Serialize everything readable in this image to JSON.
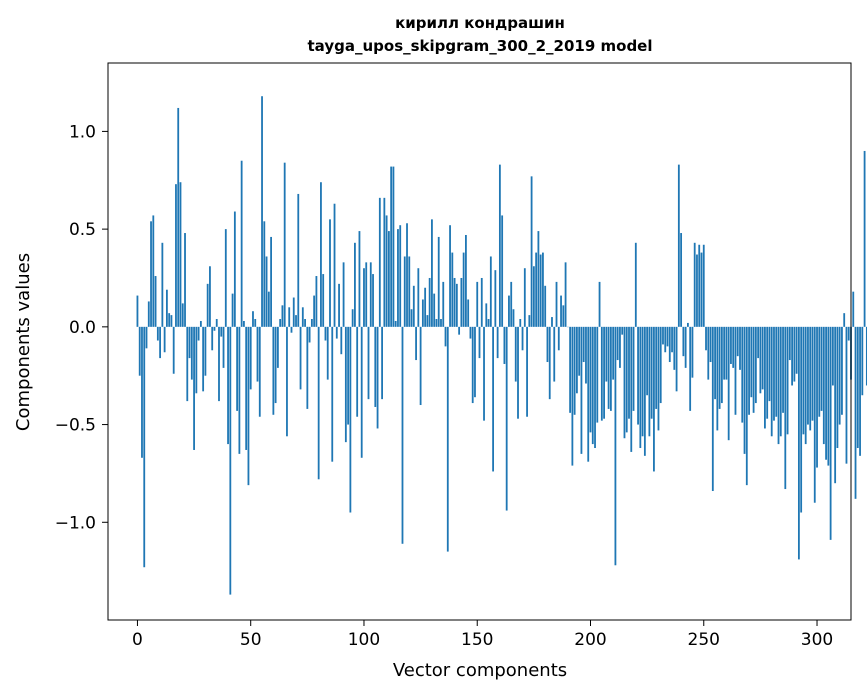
{
  "chart_data": {
    "type": "bar",
    "title": "кирилл кондрашин",
    "subtitle": "tayga_upos_skipgram_300_2_2019 model",
    "xlabel": "Vector components",
    "ylabel": "Components values",
    "xlim": [
      -13,
      315
    ],
    "ylim": [
      -1.5,
      1.35
    ],
    "xticks": [
      0,
      50,
      100,
      150,
      200,
      250,
      300
    ],
    "yticks": [
      -1.0,
      -0.5,
      0.0,
      0.5,
      1.0
    ],
    "ytick_labels": [
      "−1.0",
      "−0.5",
      "0.0",
      "0.5",
      "1.0"
    ],
    "grid": false,
    "bar_color": "#1f77b4",
    "values": [
      0.16,
      -0.25,
      -0.67,
      -1.23,
      -0.11,
      0.13,
      0.54,
      0.57,
      0.26,
      -0.07,
      -0.16,
      0.43,
      -0.13,
      0.19,
      0.07,
      0.06,
      -0.24,
      0.73,
      1.12,
      0.74,
      0.12,
      0.48,
      -0.38,
      -0.16,
      -0.27,
      -0.63,
      -0.34,
      -0.07,
      0.03,
      -0.33,
      -0.25,
      0.22,
      0.31,
      -0.12,
      -0.02,
      0.04,
      -0.38,
      -0.05,
      -0.21,
      0.5,
      -0.6,
      -1.37,
      0.17,
      0.59,
      -0.43,
      -0.65,
      0.85,
      0.03,
      -0.63,
      -0.81,
      -0.32,
      0.08,
      0.04,
      -0.28,
      -0.46,
      1.18,
      0.54,
      0.36,
      0.18,
      0.46,
      -0.45,
      -0.39,
      -0.21,
      0.04,
      0.11,
      0.84,
      -0.56,
      0.1,
      -0.03,
      0.15,
      0.06,
      0.68,
      -0.32,
      0.1,
      0.04,
      -0.42,
      -0.08,
      0.04,
      0.16,
      0.26,
      -0.78,
      0.74,
      0.27,
      -0.07,
      -0.27,
      0.55,
      -0.69,
      0.63,
      -0.06,
      0.22,
      -0.14,
      0.33,
      -0.59,
      -0.5,
      -0.95,
      0.09,
      0.43,
      -0.46,
      0.49,
      -0.67,
      0.3,
      0.33,
      -0.37,
      0.33,
      0.27,
      -0.41,
      -0.52,
      0.66,
      -0.37,
      0.66,
      0.57,
      0.49,
      0.82,
      0.82,
      0.03,
      0.5,
      0.52,
      -1.11,
      0.36,
      0.53,
      0.36,
      0.09,
      0.21,
      -0.17,
      0.3,
      -0.4,
      0.14,
      0.2,
      0.06,
      0.25,
      0.55,
      0.17,
      0.04,
      0.46,
      0.04,
      0.23,
      -0.1,
      -1.15,
      0.52,
      0.38,
      0.25,
      0.22,
      -0.04,
      0.25,
      0.38,
      0.47,
      0.14,
      -0.06,
      -0.39,
      -0.36,
      0.23,
      -0.16,
      0.25,
      -0.48,
      0.12,
      0.04,
      0.36,
      -0.74,
      0.29,
      -0.16,
      0.83,
      0.57,
      -0.19,
      -0.94,
      0.16,
      0.23,
      0.09,
      -0.28,
      -0.47,
      0.04,
      -0.12,
      0.3,
      -0.46,
      0.06,
      0.77,
      0.31,
      0.38,
      0.49,
      0.37,
      0.38,
      0.21,
      -0.18,
      -0.37,
      0.05,
      -0.28,
      0.23,
      -0.12,
      0.16,
      0.11,
      0.33,
      0.0,
      -0.44,
      -0.71,
      -0.45,
      -0.34,
      -0.25,
      -0.65,
      -0.18,
      -0.29,
      -0.69,
      -0.54,
      -0.6,
      -0.62,
      -0.49,
      0.23,
      -0.48,
      -0.47,
      -0.28,
      -0.42,
      -0.43,
      -0.27,
      -1.22,
      -0.17,
      -0.21,
      -0.04,
      -0.57,
      -0.54,
      -0.47,
      -0.64,
      -0.43,
      0.43,
      -0.5,
      -0.62,
      -0.56,
      -0.66,
      -0.35,
      -0.56,
      -0.47,
      -0.74,
      -0.42,
      -0.53,
      -0.39,
      -0.09,
      -0.13,
      -0.1,
      -0.18,
      -0.13,
      -0.22,
      -0.33,
      0.83,
      0.48,
      -0.15,
      -0.21,
      0.02,
      -0.43,
      -0.26,
      0.43,
      0.37,
      0.42,
      0.38,
      0.42,
      -0.12,
      -0.27,
      -0.18,
      -0.84,
      -0.37,
      -0.53,
      -0.42,
      -0.39,
      -0.27,
      -0.27,
      -0.58,
      -0.19,
      -0.21,
      -0.45,
      -0.15,
      -0.22,
      -0.49,
      -0.65,
      -0.81,
      -0.45,
      -0.36,
      -0.44,
      -0.39,
      -0.16,
      -0.34,
      -0.32,
      -0.52,
      -0.47,
      -0.38,
      -0.56,
      -0.48,
      -0.46,
      -0.6,
      -0.56,
      -0.44,
      -0.83,
      -0.55,
      -0.17,
      -0.3,
      -0.28,
      -0.24,
      -1.19,
      -0.95,
      -0.55,
      -0.6,
      -0.5,
      -0.53,
      -0.48,
      -0.9,
      -0.72,
      -0.46,
      -0.43,
      -0.6,
      -0.68,
      -0.71,
      -1.09,
      -0.3,
      -0.8,
      -0.62,
      -0.5,
      -0.45,
      0.07,
      -0.7,
      -0.07,
      -0.27,
      0.18,
      -0.88,
      -0.62,
      -0.66,
      -0.35,
      0.9,
      -0.3,
      -0.26,
      -0.72
    ]
  }
}
